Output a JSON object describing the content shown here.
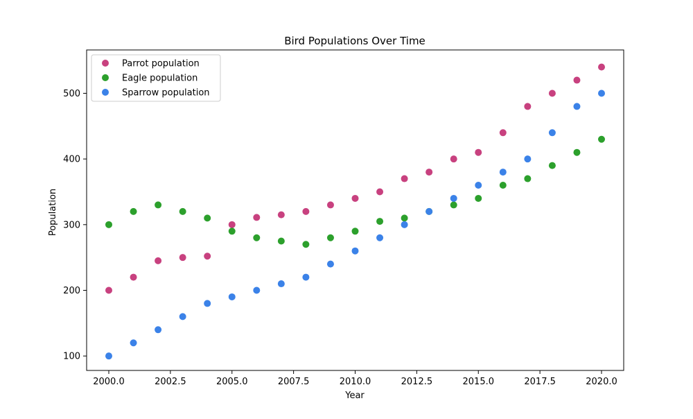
{
  "chart_data": {
    "type": "scatter",
    "title": "Bird Populations Over Time",
    "xlabel": "Year",
    "ylabel": "Population",
    "xlim": [
      1999.1,
      2020.9
    ],
    "ylim": [
      78,
      566
    ],
    "x_ticks": [
      2000.0,
      2002.5,
      2005.0,
      2007.5,
      2010.0,
      2012.5,
      2015.0,
      2017.5,
      2020.0
    ],
    "x_tick_labels": [
      "2000.0",
      "2002.5",
      "2005.0",
      "2007.5",
      "2010.0",
      "2012.5",
      "2015.0",
      "2017.5",
      "2020.0"
    ],
    "y_ticks": [
      100,
      200,
      300,
      400,
      500
    ],
    "y_tick_labels": [
      "100",
      "200",
      "300",
      "400",
      "500"
    ],
    "grid": false,
    "legend_position": "top-left",
    "x": [
      2000,
      2001,
      2002,
      2003,
      2004,
      2005,
      2006,
      2007,
      2008,
      2009,
      2010,
      2011,
      2012,
      2013,
      2014,
      2015,
      2016,
      2017,
      2018,
      2019,
      2020
    ],
    "series": [
      {
        "name": "Parrot population",
        "color": "#c8417f",
        "values": [
          200,
          220,
          245,
          250,
          252,
          300,
          311,
          315,
          320,
          330,
          340,
          350,
          370,
          380,
          400,
          410,
          440,
          480,
          500,
          520,
          540
        ]
      },
      {
        "name": "Eagle population",
        "color": "#2ca02c",
        "values": [
          300,
          320,
          330,
          320,
          310,
          290,
          280,
          275,
          270,
          280,
          290,
          305,
          310,
          320,
          330,
          340,
          360,
          370,
          390,
          410,
          430
        ]
      },
      {
        "name": "Sparrow population",
        "color": "#3b82e8",
        "values": [
          100,
          120,
          140,
          160,
          180,
          190,
          200,
          210,
          220,
          240,
          260,
          280,
          300,
          320,
          340,
          360,
          380,
          400,
          440,
          480,
          500
        ]
      }
    ]
  }
}
